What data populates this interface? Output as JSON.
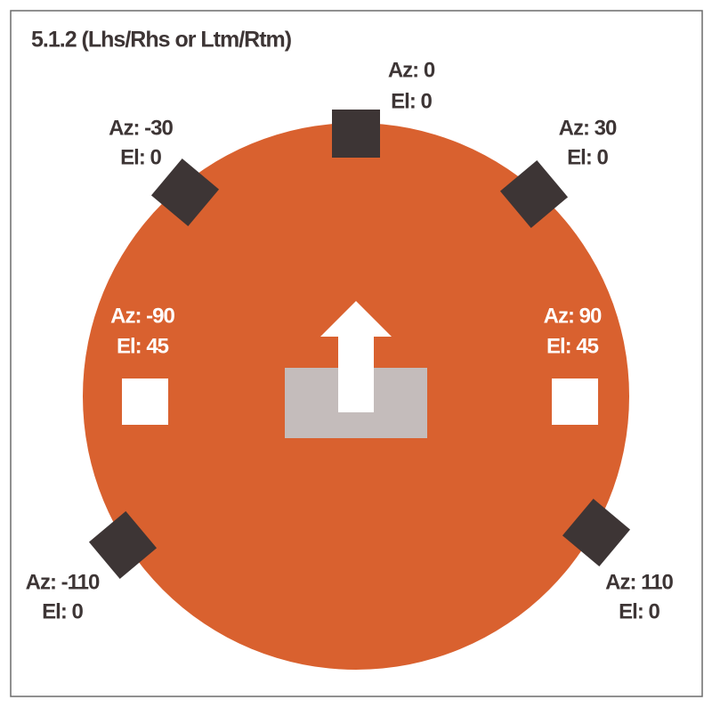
{
  "header": {
    "title": "5.1.2 (Lhs/Rhs or Ltm/Rtm)"
  },
  "speakers": [
    {
      "azimuth": "Az: 0",
      "elevation": "El: 0"
    },
    {
      "azimuth": "Az: -30",
      "elevation": "El: 0"
    },
    {
      "azimuth": "Az: 30",
      "elevation": "El: 0"
    },
    {
      "azimuth": "Az: -90",
      "elevation": "El: 45"
    },
    {
      "azimuth": "Az: 90",
      "elevation": "El: 45"
    },
    {
      "azimuth": "Az: -110",
      "elevation": "El: 0"
    },
    {
      "azimuth": "Az: 110",
      "elevation": "El: 0"
    }
  ]
}
